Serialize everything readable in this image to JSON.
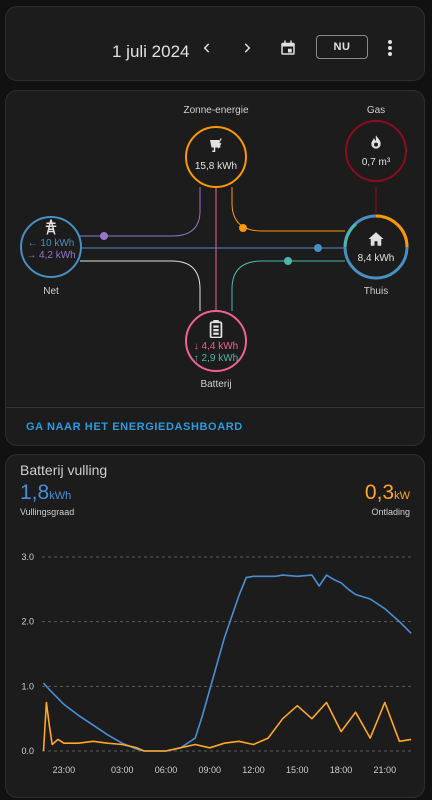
{
  "header": {
    "date": "1 juli 2024",
    "now_label": "NU",
    "icons": [
      "chevron-left-icon",
      "chevron-right-icon",
      "calendar-icon",
      "more-vert-icon"
    ]
  },
  "energy_flow": {
    "solar": {
      "label": "Zonne-energie",
      "value": "15,8 kWh",
      "color": "#ff9800"
    },
    "gas": {
      "label": "Gas",
      "value": "0,7 m³",
      "color": "#8e0b21"
    },
    "grid": {
      "label": "Net",
      "import": "← 10 kWh",
      "export": "→ 4,2 kWh",
      "color": "#488fc2",
      "import_color": "#488fc2",
      "export_color": "#8353d4"
    },
    "home": {
      "label": "Thuis",
      "value": "8,4 kWh",
      "color": "#488fc2"
    },
    "battery": {
      "label": "Batterij",
      "discharge": "↓ 4,4 kWh",
      "charge": "↑ 2,9 kWh",
      "color": "#f06292",
      "discharge_color": "#f06292",
      "charge_color": "#4db6ac"
    },
    "dashboard_link": "GA NAAR HET ENERGIEDASHBOARD"
  },
  "battery_card": {
    "title": "Batterij vulling",
    "left_value": "1,8",
    "left_unit": "kWh",
    "left_caption": "Vullingsgraad",
    "right_value": "0,3",
    "right_unit": "kW",
    "right_caption": "Ontlading"
  },
  "chart_data": {
    "type": "line",
    "title": "",
    "y_ticks": [
      "3.0",
      "2.0",
      "1.0",
      "0.0"
    ],
    "x_ticks": [
      "23:00",
      "03:00",
      "06:00",
      "09:00",
      "12:00",
      "15:00",
      "18:00",
      "21:00"
    ],
    "ylim": [
      0,
      3.2
    ],
    "xlim": [
      21.5,
      47.0
    ],
    "grid": true,
    "series": [
      {
        "color": "#4a8fd6",
        "x": [
          21.6,
          22.0,
          23.0,
          24.0,
          25.0,
          26.0,
          27.0,
          28.0,
          28.5,
          29.0,
          30.0,
          31.0,
          32.0,
          32.5,
          33.0,
          34.0,
          35.0,
          35.5,
          36.0,
          37.5,
          38.0,
          39.0,
          40.0,
          40.5,
          41.0,
          41.5,
          42.0,
          42.5,
          43.0,
          44.0,
          45.0,
          46.0,
          46.8
        ],
        "y": [
          1.05,
          0.95,
          0.72,
          0.55,
          0.4,
          0.25,
          0.12,
          0.03,
          0.0,
          0.0,
          0.0,
          0.05,
          0.2,
          0.55,
          0.95,
          1.75,
          2.4,
          2.68,
          2.7,
          2.7,
          2.72,
          2.7,
          2.72,
          2.55,
          2.72,
          2.65,
          2.6,
          2.5,
          2.42,
          2.35,
          2.2,
          2.0,
          1.82
        ]
      },
      {
        "color": "#ffa726",
        "x": [
          21.6,
          21.8,
          22.0,
          22.2,
          22.6,
          23.0,
          24.0,
          25.0,
          26.0,
          27.0,
          28.0,
          28.5,
          30.0,
          31.0,
          32.0,
          33.0,
          34.0,
          35.0,
          36.0,
          37.0,
          38.0,
          39.0,
          40.0,
          41.0,
          42.0,
          43.0,
          44.0,
          45.0,
          46.0,
          46.8
        ],
        "y": [
          0.0,
          0.75,
          0.4,
          0.1,
          0.18,
          0.12,
          0.12,
          0.15,
          0.12,
          0.1,
          0.05,
          0.0,
          0.0,
          0.05,
          0.1,
          0.05,
          0.12,
          0.15,
          0.1,
          0.2,
          0.5,
          0.7,
          0.5,
          0.75,
          0.3,
          0.6,
          0.2,
          0.75,
          0.15,
          0.18
        ]
      }
    ]
  }
}
